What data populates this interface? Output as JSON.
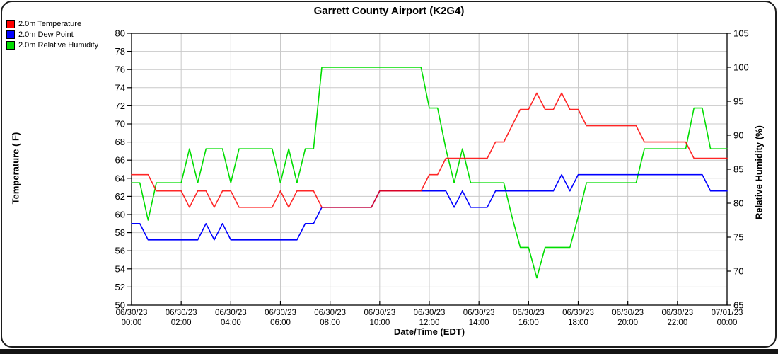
{
  "page": {
    "title": "Garrett County Airport (K2G4)"
  },
  "legend": {
    "items": [
      {
        "label": "2.0m Temperature",
        "color": "#ff0000"
      },
      {
        "label": "2.0m Dew Point",
        "color": "#0000ff"
      },
      {
        "label": "2.0m Relative Humidity",
        "color": "#00dd00"
      }
    ]
  },
  "axes": {
    "left": {
      "title": "Temperature ( F)",
      "ticks": [
        80,
        78,
        76,
        74,
        72,
        70,
        68,
        66,
        64,
        62,
        60,
        58,
        56,
        54,
        52,
        50
      ]
    },
    "right": {
      "title": "Relative Humidity (%)",
      "ticks": [
        105,
        100,
        95,
        90,
        85,
        80,
        75,
        70,
        65
      ]
    },
    "bottom": {
      "title": "Date/Time (EDT)",
      "tick_minutes": [
        0,
        120,
        240,
        360,
        480,
        600,
        720,
        840,
        960,
        1080,
        1200,
        1320,
        1440
      ],
      "tick_labels": [
        {
          "date": "06/30/23",
          "time": "00:00"
        },
        {
          "date": "06/30/23",
          "time": "02:00"
        },
        {
          "date": "06/30/23",
          "time": "04:00"
        },
        {
          "date": "06/30/23",
          "time": "06:00"
        },
        {
          "date": "06/30/23",
          "time": "08:00"
        },
        {
          "date": "06/30/23",
          "time": "10:00"
        },
        {
          "date": "06/30/23",
          "time": "12:00"
        },
        {
          "date": "06/30/23",
          "time": "14:00"
        },
        {
          "date": "06/30/23",
          "time": "16:00"
        },
        {
          "date": "06/30/23",
          "time": "18:00"
        },
        {
          "date": "06/30/23",
          "time": "20:00"
        },
        {
          "date": "06/30/23",
          "time": "22:00"
        },
        {
          "date": "07/01/23",
          "time": "00:00"
        }
      ]
    }
  },
  "chart_data": {
    "type": "line",
    "title": "Garrett County Airport (K2G4)",
    "x_axis": {
      "label": "Date/Time (EDT)",
      "start_minute": 0,
      "step_minutes": 20,
      "end_minute": 1440,
      "tick_label_pairs": "see axes.bottom.tick_labels"
    },
    "left_axis": {
      "label": "Temperature ( F)",
      "min": 50,
      "max": 80,
      "tick_step": 2
    },
    "right_axis": {
      "label": "Relative Humidity (%)",
      "min": 65,
      "max": 105,
      "tick_step": 5
    },
    "grid": true,
    "colors": {
      "grid": "#c9c9c9",
      "axis_border": "#000000",
      "background": "#ffffff"
    },
    "series": [
      {
        "name": "2.0m Temperature",
        "axis": "left",
        "color": "#ff0000",
        "opacity": 0.85,
        "values": [
          64.4,
          64.4,
          64.4,
          62.6,
          62.6,
          62.6,
          62.6,
          60.8,
          62.6,
          62.6,
          60.8,
          62.6,
          62.6,
          60.8,
          60.8,
          60.8,
          60.8,
          60.8,
          62.6,
          60.8,
          62.6,
          62.6,
          62.6,
          60.8,
          60.8,
          60.8,
          60.8,
          60.8,
          60.8,
          60.8,
          62.6,
          62.6,
          62.6,
          62.6,
          62.6,
          62.6,
          64.4,
          64.4,
          66.2,
          66.2,
          66.2,
          66.2,
          66.2,
          66.2,
          68,
          68,
          69.8,
          71.6,
          71.6,
          73.4,
          71.6,
          71.6,
          73.4,
          71.6,
          71.6,
          69.8,
          69.8,
          69.8,
          69.8,
          69.8,
          69.8,
          69.8,
          68,
          68,
          68,
          68,
          68,
          68,
          66.2,
          66.2,
          66.2,
          66.2,
          66.2
        ]
      },
      {
        "name": "2.0m Dew Point",
        "axis": "left",
        "color": "#0000ff",
        "opacity": 1,
        "values": [
          59,
          59,
          57.2,
          57.2,
          57.2,
          57.2,
          57.2,
          57.2,
          57.2,
          59,
          57.2,
          59,
          57.2,
          57.2,
          57.2,
          57.2,
          57.2,
          57.2,
          57.2,
          57.2,
          57.2,
          59,
          59,
          60.8,
          60.8,
          60.8,
          60.8,
          60.8,
          60.8,
          60.8,
          62.6,
          62.6,
          62.6,
          62.6,
          62.6,
          62.6,
          62.6,
          62.6,
          62.6,
          60.8,
          62.6,
          60.8,
          60.8,
          60.8,
          62.6,
          62.6,
          62.6,
          62.6,
          62.6,
          62.6,
          62.6,
          62.6,
          64.4,
          62.6,
          64.4,
          64.4,
          64.4,
          64.4,
          64.4,
          64.4,
          64.4,
          64.4,
          64.4,
          64.4,
          64.4,
          64.4,
          64.4,
          64.4,
          64.4,
          64.4,
          62.6,
          62.6,
          62.6
        ]
      },
      {
        "name": "2.0m Relative Humidity",
        "axis": "right",
        "color": "#00dd00",
        "opacity": 1,
        "values": [
          83,
          83,
          77.5,
          83,
          83,
          83,
          83,
          88,
          83,
          88,
          88,
          88,
          83,
          88,
          88,
          88,
          88,
          88,
          83,
          88,
          83,
          88,
          88,
          100,
          100,
          100,
          100,
          100,
          100,
          100,
          100,
          100,
          100,
          100,
          100,
          100,
          94,
          94,
          88,
          83,
          88,
          83,
          83,
          83,
          83,
          83,
          78,
          73.5,
          73.5,
          69,
          73.5,
          73.5,
          73.5,
          73.5,
          78,
          83,
          83,
          83,
          83,
          83,
          83,
          83,
          88,
          88,
          88,
          88,
          88,
          88,
          94,
          94,
          88,
          88,
          88
        ]
      }
    ]
  }
}
